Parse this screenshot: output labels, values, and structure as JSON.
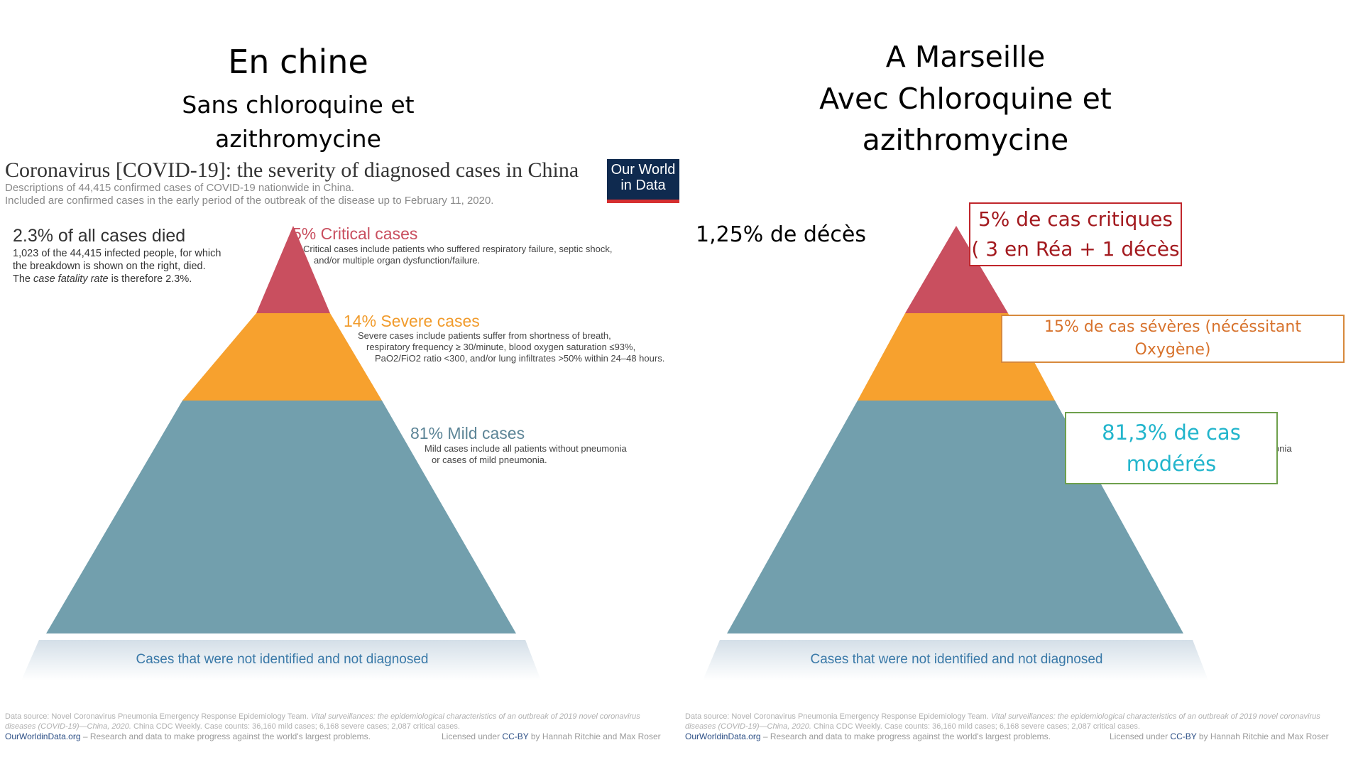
{
  "left": {
    "heading": "En chine",
    "subheading_line1": "Sans chloroquine et",
    "subheading_line2": "azithromycine"
  },
  "right": {
    "heading_line1": "A Marseille",
    "heading_line2": "Avec Chloroquine et",
    "heading_line3": "azithromycine",
    "deaths_label": "1,25% de décès",
    "critical_box_line1": "5% de cas critiques",
    "critical_box_line2": "( 3 en Réa + 1 décès",
    "severe_box_line1": "15% de cas sévères (nécéssitant",
    "severe_box_line2": "Oxygène)",
    "mild_box_line1": "81,3% de cas",
    "mild_box_line2": "modérés",
    "undiagnosed_label": "Cases that were not identified and not diagnosed",
    "peek_text": "onia"
  },
  "owid_chart": {
    "title": "Coronavirus [COVID-19]: the severity of diagnosed cases in China",
    "subtitle_line1": "Descriptions of 44,415 confirmed cases of COVID-19 nationwide in China.",
    "subtitle_line2": "Included are confirmed cases in the early period of the outbreak of the disease up to February 11, 2020.",
    "logo_line1": "Our World",
    "logo_line2": "in Data",
    "died_heading": "2.3% of all cases died",
    "died_desc_line1": "1,023 of the 44,415 infected people, for which",
    "died_desc_line2": "the breakdown is shown on the right, died.",
    "died_desc_line3_a": "The ",
    "died_desc_line3_em": "case fatality rate",
    "died_desc_line3_b": " is therefore 2.3%.",
    "critical_heading": "5% Critical cases",
    "critical_desc_line1": "Critical cases include patients who suffered respiratory failure, septic shock,",
    "critical_desc_line2": "and/or multiple organ dysfunction/failure.",
    "severe_heading": "14% Severe cases",
    "severe_desc_line1": "Severe cases include patients suffer from shortness of breath,",
    "severe_desc_line2": "respiratory frequency ≥ 30/minute, blood oxygen saturation ≤93%,",
    "severe_desc_line3": "PaO2/FiO2 ratio <300, and/or lung infiltrates >50% within 24–48 hours.",
    "mild_heading": "81% Mild cases",
    "mild_desc_line1": "Mild cases include all patients without pneumonia",
    "mild_desc_line2": "or cases of mild pneumonia.",
    "undiagnosed_label": "Cases that were not identified and not diagnosed",
    "source_line1_a": "Data source: Novel Coronavirus Pneumonia Emergency Response Epidemiology Team. ",
    "source_line1_em": "Vital surveillances: the epidemiological characteristics of an outbreak of 2019 novel coronavirus",
    "source_line2_em": "diseases (COVID-19)—China, 2020.",
    "source_line2_b": " China CDC Weekly. Case counts: 36,160 mild cases; 6,168 severe cases; 2,087 critical cases.",
    "footer_site": "OurWorldinData.org",
    "footer_tagline": " – Research and data to make progress against the world's largest problems.",
    "license_a": "Licensed under ",
    "license_link": "CC-BY",
    "license_b": " by Hannah Ritchie and Max Roser"
  },
  "colors": {
    "critical": "#c94f5f",
    "severe": "#f7a12e",
    "mild": "#729fad",
    "undiagnosed": "#dde6ee",
    "critical_box_border": "#c0262c",
    "critical_box_text": "#a31a1f",
    "severe_box_border": "#d7893c",
    "severe_box_text": "#d7722c",
    "mild_box_border": "#6ea04c",
    "mild_box_text": "#22b5cc"
  }
}
